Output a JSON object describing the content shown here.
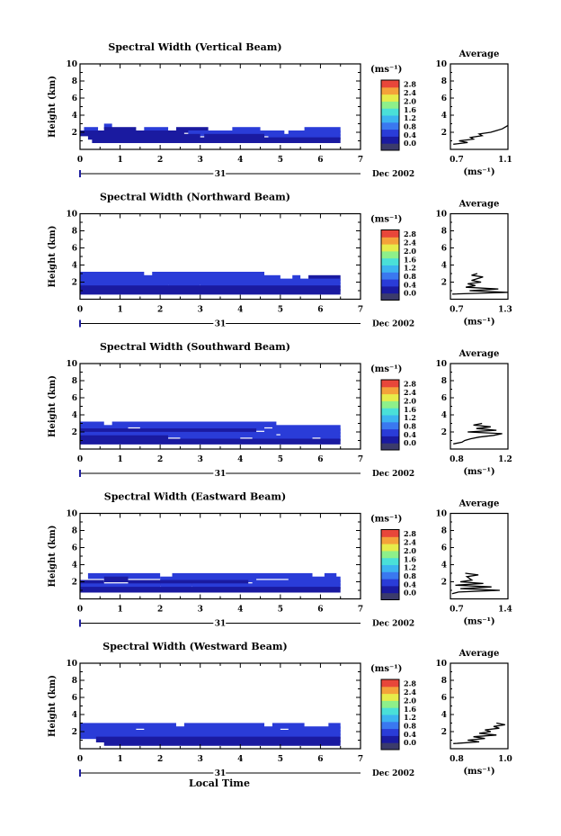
{
  "figure": {
    "x_axis_title": "Local Time",
    "day_label": "31",
    "month_label": "Dec 2002",
    "y_axis_title": "Height (km)",
    "colorbar_unit": "(ms⁻¹)",
    "avg_title": "Average",
    "avg_unit": "(ms⁻¹)"
  },
  "colorscale": {
    "ticks": [
      "0.0",
      "0.4",
      "0.8",
      "1.2",
      "1.6",
      "2.0",
      "2.4",
      "2.8"
    ],
    "colors": [
      "#3b3b6b",
      "#1a1aa0",
      "#2a3cd8",
      "#3a78f0",
      "#3cb4f0",
      "#4ae0d8",
      "#8ef08a",
      "#e6ec4a",
      "#f4a23a",
      "#e8463a"
    ]
  },
  "chart_data": [
    {
      "type": "heatmap",
      "title": "Spectral Width (Vertical Beam)",
      "xlabel": "",
      "ylabel": "Height (km)",
      "xlim": [
        0,
        7
      ],
      "ylim": [
        0,
        10
      ],
      "xticks": [
        "0",
        "1",
        "2",
        "3",
        "4",
        "5",
        "6",
        "7"
      ],
      "yticks": [
        "2",
        "4",
        "6",
        "8",
        "10"
      ],
      "colorbar_ticks": [
        "0.0",
        "0.4",
        "0.8",
        "1.2",
        "1.6",
        "2.0",
        "2.4",
        "2.8"
      ],
      "average": {
        "xticks": [
          "0.7",
          "1.1"
        ],
        "xlim": [
          0.7,
          1.1
        ],
        "profile": [
          [
            0.72,
            0.6
          ],
          [
            0.82,
            0.8
          ],
          [
            0.76,
            1.0
          ],
          [
            0.86,
            1.2
          ],
          [
            0.84,
            1.4
          ],
          [
            0.92,
            1.6
          ],
          [
            0.9,
            1.8
          ],
          [
            0.98,
            2.0
          ],
          [
            1.02,
            2.2
          ],
          [
            1.06,
            2.4
          ],
          [
            1.08,
            2.6
          ],
          [
            1.1,
            2.8
          ]
        ]
      },
      "rows": [
        {
          "h": 2.8,
          "segs": [
            [
              0.6,
              0.8,
              0.35
            ]
          ]
        },
        {
          "h": 2.4,
          "segs": [
            [
              0.1,
              0.45,
              0.35
            ],
            [
              0.6,
              1.4,
              0.3
            ],
            [
              1.6,
              2.2,
              0.35
            ],
            [
              2.4,
              3.2,
              0.3
            ],
            [
              3.8,
              4.5,
              0.35
            ],
            [
              5.6,
              6.5,
              0.4
            ]
          ]
        },
        {
          "h": 2.0,
          "segs": [
            [
              0.0,
              2.6,
              0.3
            ],
            [
              2.7,
              5.1,
              0.35
            ],
            [
              5.2,
              6.5,
              0.45
            ]
          ]
        },
        {
          "h": 1.6,
          "segs": [
            [
              0.2,
              3.0,
              0.25
            ],
            [
              3.1,
              4.6,
              0.3
            ],
            [
              4.7,
              6.5,
              0.4
            ]
          ]
        },
        {
          "h": 1.2,
          "segs": [
            [
              0.3,
              6.5,
              0.2
            ]
          ]
        }
      ]
    },
    {
      "type": "heatmap",
      "title": "Spectral Width (Northward Beam)",
      "xlabel": "",
      "ylabel": "Height (km)",
      "xlim": [
        0,
        7
      ],
      "ylim": [
        0,
        10
      ],
      "xticks": [
        "0",
        "1",
        "2",
        "3",
        "4",
        "5",
        "6",
        "7"
      ],
      "yticks": [
        "2",
        "4",
        "6",
        "8",
        "10"
      ],
      "colorbar_ticks": [
        "0.0",
        "0.4",
        "0.8",
        "1.2",
        "1.6",
        "2.0",
        "2.4",
        "2.8"
      ],
      "average": {
        "xticks": [
          "0.7",
          "1.3"
        ],
        "xlim": [
          0.7,
          1.3
        ],
        "profile": [
          [
            0.72,
            0.6
          ],
          [
            1.3,
            0.8
          ],
          [
            0.9,
            1.0
          ],
          [
            1.2,
            1.2
          ],
          [
            0.86,
            1.4
          ],
          [
            0.96,
            1.6
          ],
          [
            0.88,
            1.8
          ],
          [
            1.02,
            2.0
          ],
          [
            0.92,
            2.2
          ],
          [
            1.04,
            2.6
          ],
          [
            0.92,
            2.8
          ],
          [
            0.98,
            3.0
          ]
        ]
      },
      "rows": [
        {
          "h": 3.0,
          "segs": [
            [
              0.0,
              1.6,
              0.35
            ],
            [
              1.8,
              4.6,
              0.35
            ]
          ]
        },
        {
          "h": 2.6,
          "segs": [
            [
              0.0,
              5.0,
              0.35
            ],
            [
              5.3,
              5.5,
              0.4
            ],
            [
              5.7,
              6.5,
              0.3
            ]
          ]
        },
        {
          "h": 2.2,
          "segs": [
            [
              0.0,
              6.5,
              0.4
            ]
          ]
        },
        {
          "h": 1.8,
          "segs": [
            [
              0.0,
              2.2,
              0.4
            ],
            [
              2.2,
              3.0,
              0.55
            ],
            [
              3.0,
              6.5,
              0.4
            ]
          ]
        },
        {
          "h": 1.4,
          "segs": [
            [
              0.0,
              6.5,
              0.3
            ]
          ]
        },
        {
          "h": 1.0,
          "segs": [
            [
              0.0,
              6.5,
              0.2
            ]
          ]
        }
      ]
    },
    {
      "type": "heatmap",
      "title": "Spectral Width (Southward Beam)",
      "xlabel": "",
      "ylabel": "Height (km)",
      "xlim": [
        0,
        7
      ],
      "ylim": [
        0,
        10
      ],
      "xticks": [
        "0",
        "1",
        "2",
        "3",
        "4",
        "5",
        "6",
        "7"
      ],
      "yticks": [
        "2",
        "4",
        "6",
        "8",
        "10"
      ],
      "colorbar_ticks": [
        "0.0",
        "0.4",
        "0.8",
        "1.2",
        "1.6",
        "2.0",
        "2.4",
        "2.8"
      ],
      "average": {
        "xticks": [
          "0.8",
          "1.2"
        ],
        "xlim": [
          0.8,
          1.2
        ],
        "profile": [
          [
            0.82,
            0.6
          ],
          [
            0.88,
            0.8
          ],
          [
            0.9,
            1.0
          ],
          [
            0.94,
            1.2
          ],
          [
            1.0,
            1.4
          ],
          [
            1.1,
            1.6
          ],
          [
            1.16,
            1.8
          ],
          [
            0.92,
            2.0
          ],
          [
            1.12,
            2.2
          ],
          [
            0.98,
            2.4
          ],
          [
            1.08,
            2.6
          ],
          [
            0.96,
            2.8
          ],
          [
            1.02,
            3.0
          ]
        ]
      },
      "rows": [
        {
          "h": 3.0,
          "segs": [
            [
              0.0,
              0.6,
              0.35
            ],
            [
              0.8,
              4.9,
              0.35
            ]
          ]
        },
        {
          "h": 2.6,
          "segs": [
            [
              0.0,
              1.2,
              0.35
            ],
            [
              1.5,
              4.6,
              0.4
            ],
            [
              4.8,
              6.5,
              0.4
            ]
          ]
        },
        {
          "h": 2.2,
          "segs": [
            [
              0.0,
              4.4,
              0.3
            ],
            [
              4.6,
              6.5,
              0.45
            ]
          ]
        },
        {
          "h": 1.8,
          "segs": [
            [
              0.0,
              4.9,
              0.4
            ],
            [
              5.0,
              6.5,
              0.35
            ]
          ]
        },
        {
          "h": 1.4,
          "segs": [
            [
              0.0,
              2.2,
              0.3
            ],
            [
              2.5,
              4.0,
              0.35
            ],
            [
              4.3,
              5.8,
              0.35
            ],
            [
              6.0,
              6.5,
              0.35
            ]
          ]
        },
        {
          "h": 1.0,
          "segs": [
            [
              0.0,
              6.5,
              0.25
            ]
          ]
        }
      ]
    },
    {
      "type": "heatmap",
      "title": "Spectral Width (Eastward Beam)",
      "xlabel": "",
      "ylabel": "Height (km)",
      "xlim": [
        0,
        7
      ],
      "ylim": [
        0,
        10
      ],
      "xticks": [
        "0",
        "1",
        "2",
        "3",
        "4",
        "5",
        "6",
        "7"
      ],
      "yticks": [
        "2",
        "4",
        "6",
        "8",
        "10"
      ],
      "colorbar_ticks": [
        "0.0",
        "0.4",
        "0.8",
        "1.2",
        "1.6",
        "2.0",
        "2.4",
        "2.8"
      ],
      "average": {
        "xticks": [
          "0.7",
          "1.4"
        ],
        "xlim": [
          0.7,
          1.4
        ],
        "profile": [
          [
            0.72,
            0.6
          ],
          [
            0.8,
            0.8
          ],
          [
            1.3,
            1.0
          ],
          [
            0.82,
            1.2
          ],
          [
            1.2,
            1.4
          ],
          [
            0.76,
            1.6
          ],
          [
            1.1,
            1.8
          ],
          [
            0.82,
            2.0
          ],
          [
            0.96,
            2.2
          ],
          [
            0.9,
            2.6
          ],
          [
            1.04,
            2.8
          ],
          [
            0.88,
            3.0
          ]
        ]
      },
      "rows": [
        {
          "h": 2.8,
          "segs": [
            [
              0.2,
              2.0,
              0.45
            ],
            [
              2.3,
              5.8,
              0.45
            ],
            [
              6.1,
              6.4,
              0.45
            ]
          ]
        },
        {
          "h": 2.4,
          "segs": [
            [
              0.6,
              1.2,
              0.3
            ],
            [
              2.0,
              4.4,
              0.35
            ],
            [
              5.2,
              6.5,
              0.35
            ]
          ]
        },
        {
          "h": 2.0,
          "segs": [
            [
              0.0,
              0.6,
              0.3
            ],
            [
              1.2,
              4.2,
              0.3
            ],
            [
              4.3,
              6.5,
              0.4
            ]
          ]
        },
        {
          "h": 1.6,
          "segs": [
            [
              0.0,
              2.0,
              0.35
            ],
            [
              2.0,
              2.8,
              0.5
            ],
            [
              2.8,
              6.5,
              0.4
            ]
          ]
        },
        {
          "h": 1.2,
          "segs": [
            [
              0.0,
              6.5,
              0.3
            ]
          ]
        }
      ]
    },
    {
      "type": "heatmap",
      "title": "Spectral Width (Westward Beam)",
      "xlabel": "Local Time",
      "ylabel": "Height (km)",
      "xlim": [
        0,
        7
      ],
      "ylim": [
        0,
        10
      ],
      "xticks": [
        "0",
        "1",
        "2",
        "3",
        "4",
        "5",
        "6",
        "7"
      ],
      "yticks": [
        "2",
        "4",
        "6",
        "8",
        "10"
      ],
      "colorbar_ticks": [
        "0.0",
        "0.4",
        "0.8",
        "1.2",
        "1.6",
        "2.0",
        "2.4",
        "2.8"
      ],
      "average": {
        "xticks": [
          "0.8",
          "1.0"
        ],
        "xlim": [
          0.8,
          1.0
        ],
        "profile": [
          [
            0.81,
            0.6
          ],
          [
            0.9,
            0.8
          ],
          [
            0.86,
            1.0
          ],
          [
            0.92,
            1.2
          ],
          [
            0.88,
            1.4
          ],
          [
            0.96,
            1.6
          ],
          [
            0.9,
            1.8
          ],
          [
            0.94,
            2.0
          ],
          [
            0.92,
            2.2
          ],
          [
            0.97,
            2.4
          ],
          [
            0.95,
            2.6
          ],
          [
            0.99,
            2.8
          ],
          [
            0.96,
            3.0
          ]
        ]
      },
      "rows": [
        {
          "h": 2.8,
          "segs": [
            [
              0.0,
              2.4,
              0.4
            ],
            [
              2.6,
              4.6,
              0.4
            ],
            [
              4.8,
              5.6,
              0.35
            ],
            [
              6.2,
              6.5,
              0.45
            ]
          ]
        },
        {
          "h": 2.4,
          "segs": [
            [
              0.0,
              1.4,
              0.4
            ],
            [
              1.6,
              5.0,
              0.35
            ],
            [
              5.2,
              6.5,
              0.45
            ]
          ]
        },
        {
          "h": 2.0,
          "segs": [
            [
              0.0,
              6.5,
              0.4
            ]
          ]
        },
        {
          "h": 1.6,
          "segs": [
            [
              0.0,
              6.5,
              0.45
            ]
          ]
        },
        {
          "h": 1.2,
          "segs": [
            [
              0.4,
              6.5,
              0.3
            ]
          ]
        },
        {
          "h": 0.8,
          "segs": [
            [
              0.6,
              6.5,
              0.2
            ]
          ]
        }
      ]
    }
  ]
}
